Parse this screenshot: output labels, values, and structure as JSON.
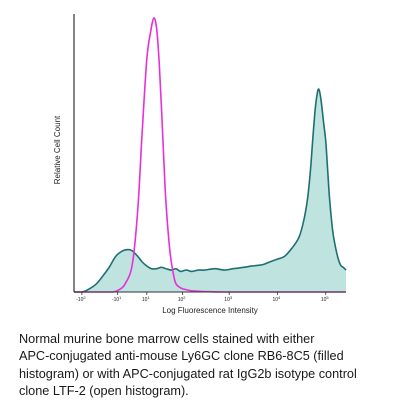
{
  "chart_data": {
    "type": "area",
    "title": "",
    "xlabel": "Log Fluorescence Intensity",
    "ylabel": "Relative Cell Count",
    "x_scale": "biexponential",
    "x_ticks": [
      {
        "base": "-10",
        "exp": "2"
      },
      {
        "base": "-10",
        "exp": "1"
      },
      {
        "base": "10",
        "exp": "1"
      },
      {
        "base": "10",
        "exp": "2"
      },
      {
        "base": "10",
        "exp": "3"
      },
      {
        "base": "10",
        "exp": "4"
      },
      {
        "base": "10",
        "exp": "5"
      }
    ],
    "x_tick_values": [
      -100,
      -10,
      10,
      100,
      1000,
      10000,
      100000
    ],
    "xlim": [
      -150,
      262144
    ],
    "ylim": [
      0,
      100
    ],
    "grid": false,
    "series": [
      {
        "style": "open",
        "color": "#e830d8",
        "x": [
          -150,
          -100,
          -60,
          -30,
          -15,
          -8,
          -4,
          0,
          3,
          6,
          10,
          14,
          18,
          22,
          26,
          30,
          35,
          40,
          50,
          60,
          70,
          90,
          110,
          150,
          200,
          260,
          400,
          1000,
          5000,
          20000,
          100000,
          262144
        ],
        "y": [
          0,
          0,
          0,
          0,
          0,
          1,
          3,
          10,
          30,
          58,
          85,
          95,
          100,
          96,
          84,
          68,
          48,
          32,
          15,
          7,
          3,
          1.5,
          1,
          0.5,
          0.3,
          0.2,
          0.1,
          0,
          0,
          0,
          0,
          0
        ]
      },
      {
        "style": "filled",
        "color": "#1f6f72",
        "fill": "#bfe3df",
        "x": [
          -150,
          -100,
          -70,
          -45,
          -30,
          -20,
          -12,
          -6,
          -2,
          0,
          3,
          6,
          10,
          15,
          22,
          30,
          40,
          55,
          70,
          90,
          120,
          160,
          220,
          300,
          500,
          800,
          1200,
          2000,
          3000,
          5000,
          7000,
          10000,
          14000,
          20000,
          28000,
          35000,
          42000,
          48000,
          54000,
          60000,
          66000,
          72000,
          80000,
          90000,
          100000,
          110000,
          120000,
          140000,
          170000,
          200000,
          230000,
          262144
        ],
        "y": [
          0,
          0,
          1,
          3,
          6,
          9,
          13,
          15,
          15.5,
          15,
          13,
          11,
          9.5,
          8.5,
          8.5,
          9,
          8.5,
          8,
          8.5,
          7.5,
          8,
          7.5,
          8,
          8,
          8.5,
          8,
          8.5,
          9,
          9.5,
          10,
          11,
          12,
          13,
          16,
          20,
          26,
          34,
          44,
          56,
          66,
          72,
          74,
          70,
          62,
          55,
          44,
          34,
          22,
          14,
          10,
          9,
          8
        ]
      }
    ]
  },
  "caption": {
    "lines": [
      "Normal murine bone marrow cells stained with either",
      "APC-conjugated anti-mouse Ly6GC clone RB6-8C5 (filled",
      "histogram) or with APC-conjugated rat IgG2b isotype control",
      "clone LTF-2 (open histogram)."
    ]
  }
}
